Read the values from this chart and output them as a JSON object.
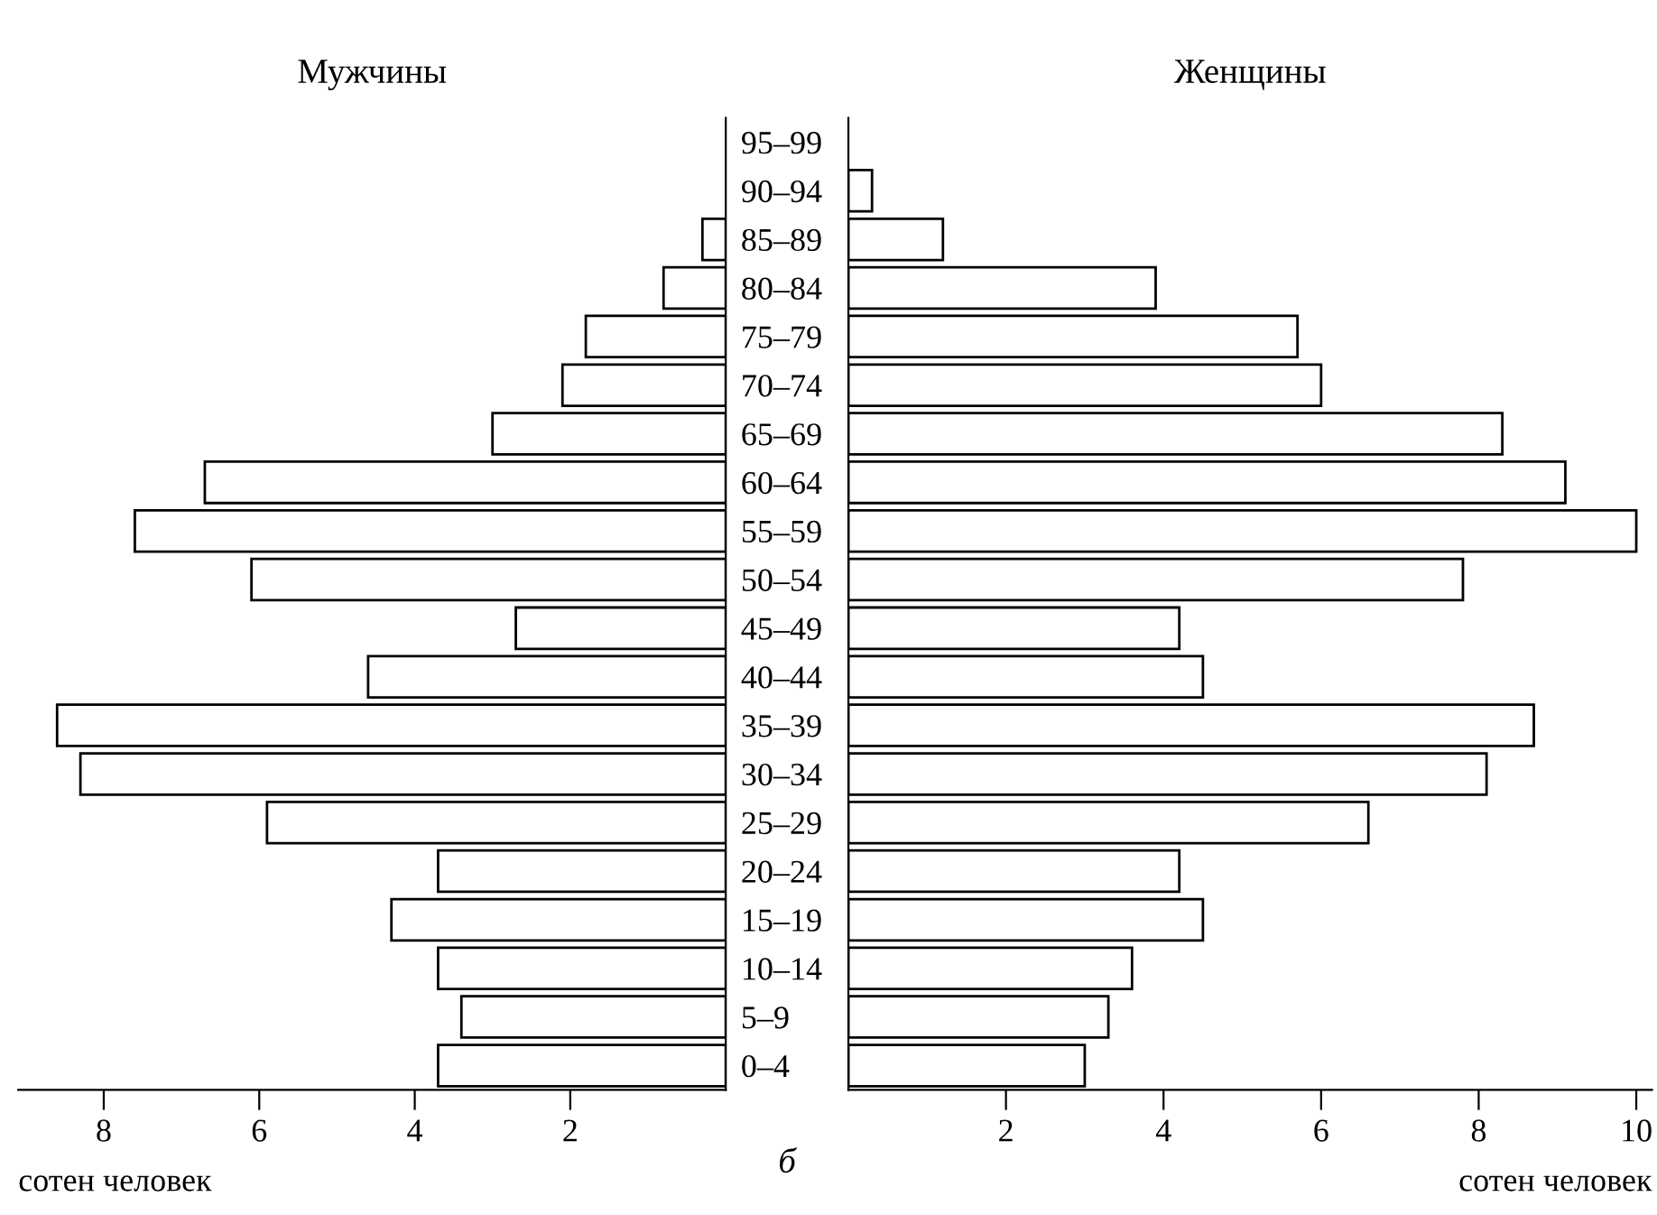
{
  "chart_data": [
    {
      "type": "bar",
      "orientation": "horizontal",
      "title": "Мужчины",
      "xlabel": "сотен человек",
      "categories": [
        "95–99",
        "90–94",
        "85–89",
        "80–84",
        "75–79",
        "70–74",
        "65–69",
        "60–64",
        "55–59",
        "50–54",
        "45–49",
        "40–44",
        "35–39",
        "30–34",
        "25–29",
        "20–24",
        "15–19",
        "10–14",
        "5–9",
        "0–4"
      ],
      "values": [
        null,
        null,
        0.3,
        0.8,
        1.8,
        2.1,
        3.0,
        6.7,
        7.6,
        6.1,
        2.7,
        4.6,
        8.6,
        8.3,
        5.9,
        3.7,
        4.3,
        3.7,
        3.4,
        3.7
      ],
      "color": "#ffffff",
      "xlim": [
        9.1,
        0
      ],
      "xticks": [
        2,
        4,
        6,
        8
      ],
      "grid": false,
      "legend": false,
      "annotations": [
        "б"
      ]
    },
    {
      "type": "bar",
      "orientation": "horizontal",
      "title": "Женщины",
      "xlabel": "сотен человек",
      "tick_labels": "x",
      "categories": [
        null,
        null,
        null,
        null,
        null,
        null,
        null,
        null,
        null,
        null,
        null,
        null,
        null,
        null,
        null,
        null,
        null,
        null,
        null,
        null
      ],
      "values": [
        null,
        0.3,
        1.2,
        3.9,
        5.7,
        6.0,
        8.3,
        9.1,
        10.0,
        7.8,
        4.2,
        4.5,
        8.7,
        8.1,
        6.6,
        4.2,
        4.5,
        3.6,
        3.3,
        3.0
      ],
      "color": "#ffffff",
      "xlim": [
        0,
        10.2
      ],
      "xticks": [
        2,
        4,
        6,
        8,
        10
      ],
      "grid": false,
      "legend": false
    }
  ]
}
